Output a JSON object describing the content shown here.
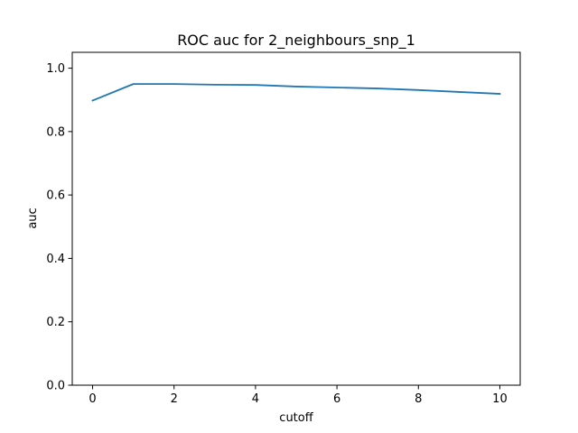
{
  "chart_data": {
    "type": "line",
    "title": "ROC auc for 2_neighbours_snp_1",
    "xlabel": "cutoff",
    "ylabel": "auc",
    "xlim": [
      -0.5,
      10.5
    ],
    "ylim": [
      0.0,
      1.05
    ],
    "xticks": [
      0,
      2,
      4,
      6,
      8,
      10
    ],
    "yticks": [
      0.0,
      0.2,
      0.4,
      0.6,
      0.8,
      1.0
    ],
    "xtick_labels": [
      "0",
      "2",
      "4",
      "6",
      "8",
      "10"
    ],
    "ytick_labels": [
      "0.0",
      "0.2",
      "0.4",
      "0.6",
      "0.8",
      "1.0"
    ],
    "grid": false,
    "series": [
      {
        "color": "#1f77b4",
        "x": [
          0,
          1,
          2,
          3,
          4,
          5,
          6,
          7,
          8,
          9,
          10
        ],
        "y": [
          0.898,
          0.95,
          0.95,
          0.948,
          0.947,
          0.942,
          0.939,
          0.936,
          0.931,
          0.925,
          0.919
        ]
      }
    ]
  }
}
